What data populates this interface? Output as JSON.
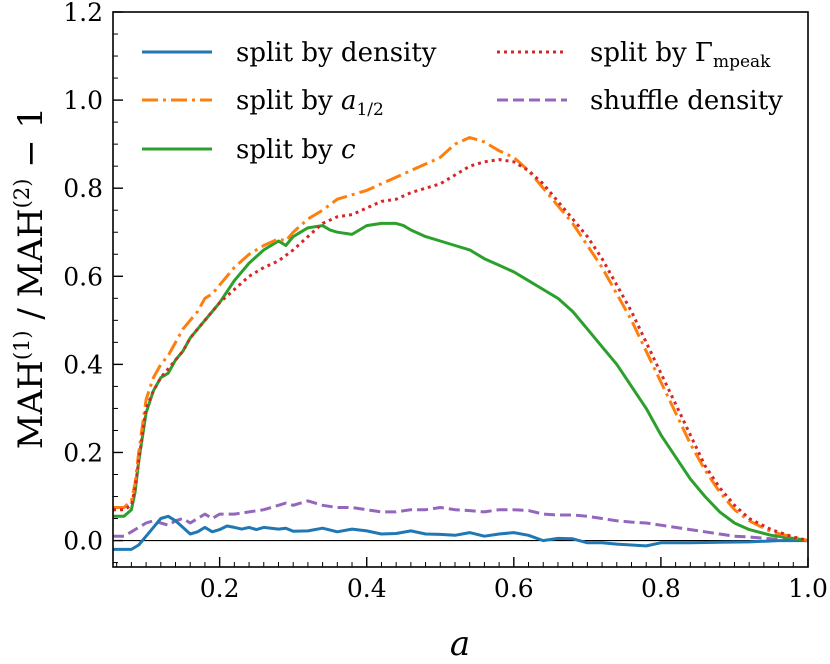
{
  "chart_data": {
    "type": "line",
    "xlabel": "a",
    "ylabel": "MAH(1) / MAH(2) − 1",
    "xlim": [
      0.055,
      1.0
    ],
    "ylim": [
      -0.06,
      1.2
    ],
    "xticks": [
      0.2,
      0.4,
      0.6,
      0.8,
      1.0
    ],
    "xtick_labels": [
      "0.2",
      "0.4",
      "0.6",
      "0.8",
      "1.0"
    ],
    "yticks": [
      0.0,
      0.2,
      0.4,
      0.6,
      0.8,
      1.0,
      1.2
    ],
    "ytick_labels": [
      "0.0",
      "0.2",
      "0.4",
      "0.6",
      "0.8",
      "1.0",
      "1.2"
    ],
    "grid": false,
    "legend_position": "top",
    "reference_line": 0.0,
    "series": [
      {
        "name": "split by density",
        "color": "#1f77b4",
        "style": "solid",
        "x": [
          0.055,
          0.08,
          0.09,
          0.1,
          0.11,
          0.12,
          0.13,
          0.14,
          0.15,
          0.16,
          0.17,
          0.18,
          0.19,
          0.2,
          0.21,
          0.22,
          0.23,
          0.24,
          0.25,
          0.26,
          0.27,
          0.28,
          0.29,
          0.3,
          0.32,
          0.34,
          0.36,
          0.38,
          0.4,
          0.42,
          0.44,
          0.46,
          0.48,
          0.5,
          0.52,
          0.54,
          0.56,
          0.58,
          0.6,
          0.62,
          0.64,
          0.66,
          0.68,
          0.7,
          0.72,
          0.74,
          0.76,
          0.78,
          0.8,
          0.84,
          0.88,
          0.92,
          0.96,
          1.0
        ],
        "y": [
          -0.02,
          -0.02,
          -0.01,
          0.01,
          0.03,
          0.05,
          0.055,
          0.045,
          0.03,
          0.015,
          0.02,
          0.03,
          0.02,
          0.025,
          0.033,
          0.03,
          0.026,
          0.03,
          0.025,
          0.03,
          0.028,
          0.026,
          0.028,
          0.021,
          0.022,
          0.028,
          0.02,
          0.026,
          0.022,
          0.015,
          0.016,
          0.022,
          0.015,
          0.014,
          0.012,
          0.018,
          0.01,
          0.015,
          0.018,
          0.012,
          0.0,
          0.005,
          0.004,
          -0.005,
          -0.005,
          -0.008,
          -0.01,
          -0.012,
          -0.005,
          -0.005,
          -0.004,
          -0.003,
          0.0,
          0.0
        ]
      },
      {
        "name": "split by a1/2",
        "color": "#ff7f0e",
        "style": "dashdot",
        "x": [
          0.055,
          0.07,
          0.08,
          0.085,
          0.09,
          0.1,
          0.11,
          0.12,
          0.13,
          0.14,
          0.15,
          0.16,
          0.17,
          0.18,
          0.19,
          0.2,
          0.22,
          0.24,
          0.26,
          0.28,
          0.29,
          0.3,
          0.32,
          0.34,
          0.36,
          0.38,
          0.4,
          0.42,
          0.44,
          0.46,
          0.48,
          0.5,
          0.52,
          0.54,
          0.56,
          0.58,
          0.6,
          0.62,
          0.64,
          0.66,
          0.68,
          0.7,
          0.72,
          0.74,
          0.76,
          0.78,
          0.8,
          0.82,
          0.84,
          0.86,
          0.88,
          0.9,
          0.92,
          0.95,
          0.98,
          1.0
        ],
        "y": [
          0.075,
          0.075,
          0.09,
          0.13,
          0.2,
          0.32,
          0.37,
          0.4,
          0.42,
          0.45,
          0.48,
          0.5,
          0.52,
          0.55,
          0.56,
          0.58,
          0.62,
          0.65,
          0.67,
          0.685,
          0.68,
          0.7,
          0.73,
          0.75,
          0.775,
          0.785,
          0.795,
          0.81,
          0.825,
          0.84,
          0.855,
          0.87,
          0.9,
          0.915,
          0.905,
          0.885,
          0.87,
          0.84,
          0.8,
          0.76,
          0.72,
          0.67,
          0.62,
          0.56,
          0.5,
          0.43,
          0.36,
          0.29,
          0.22,
          0.16,
          0.11,
          0.07,
          0.045,
          0.02,
          0.008,
          0.0
        ]
      },
      {
        "name": "split by c",
        "color": "#2ca02c",
        "style": "solid",
        "x": [
          0.055,
          0.07,
          0.08,
          0.085,
          0.09,
          0.1,
          0.11,
          0.12,
          0.13,
          0.14,
          0.15,
          0.16,
          0.17,
          0.18,
          0.19,
          0.2,
          0.22,
          0.24,
          0.26,
          0.28,
          0.29,
          0.3,
          0.31,
          0.32,
          0.34,
          0.35,
          0.36,
          0.38,
          0.4,
          0.42,
          0.44,
          0.45,
          0.46,
          0.48,
          0.5,
          0.52,
          0.54,
          0.56,
          0.58,
          0.6,
          0.62,
          0.64,
          0.66,
          0.68,
          0.7,
          0.72,
          0.74,
          0.76,
          0.78,
          0.8,
          0.82,
          0.84,
          0.86,
          0.88,
          0.9,
          0.92,
          0.95,
          0.98,
          1.0
        ],
        "y": [
          0.055,
          0.055,
          0.07,
          0.11,
          0.18,
          0.29,
          0.34,
          0.37,
          0.38,
          0.41,
          0.43,
          0.46,
          0.48,
          0.5,
          0.52,
          0.54,
          0.59,
          0.63,
          0.66,
          0.68,
          0.67,
          0.69,
          0.7,
          0.71,
          0.715,
          0.705,
          0.7,
          0.695,
          0.715,
          0.72,
          0.72,
          0.715,
          0.705,
          0.69,
          0.68,
          0.67,
          0.66,
          0.64,
          0.625,
          0.61,
          0.59,
          0.57,
          0.55,
          0.52,
          0.48,
          0.44,
          0.4,
          0.35,
          0.3,
          0.24,
          0.19,
          0.14,
          0.1,
          0.065,
          0.04,
          0.025,
          0.012,
          0.005,
          0.0
        ]
      },
      {
        "name": "split by Γmpeak",
        "color": "#d62728",
        "style": "dotted",
        "x": [
          0.055,
          0.07,
          0.08,
          0.085,
          0.09,
          0.1,
          0.11,
          0.12,
          0.13,
          0.14,
          0.15,
          0.16,
          0.17,
          0.18,
          0.19,
          0.2,
          0.22,
          0.24,
          0.26,
          0.28,
          0.3,
          0.32,
          0.34,
          0.36,
          0.38,
          0.4,
          0.42,
          0.44,
          0.46,
          0.48,
          0.5,
          0.52,
          0.54,
          0.56,
          0.58,
          0.6,
          0.62,
          0.64,
          0.66,
          0.68,
          0.7,
          0.72,
          0.74,
          0.76,
          0.78,
          0.8,
          0.82,
          0.84,
          0.86,
          0.88,
          0.9,
          0.92,
          0.95,
          0.98,
          1.0
        ],
        "y": [
          0.07,
          0.07,
          0.08,
          0.12,
          0.18,
          0.3,
          0.34,
          0.37,
          0.39,
          0.41,
          0.43,
          0.46,
          0.48,
          0.5,
          0.52,
          0.54,
          0.57,
          0.6,
          0.62,
          0.635,
          0.66,
          0.69,
          0.72,
          0.735,
          0.74,
          0.755,
          0.77,
          0.775,
          0.79,
          0.8,
          0.81,
          0.83,
          0.85,
          0.86,
          0.865,
          0.86,
          0.84,
          0.81,
          0.77,
          0.73,
          0.69,
          0.64,
          0.58,
          0.52,
          0.45,
          0.38,
          0.31,
          0.24,
          0.17,
          0.12,
          0.08,
          0.05,
          0.025,
          0.008,
          0.0
        ]
      },
      {
        "name": "shuffle density",
        "color": "#9467bd",
        "style": "dashed",
        "x": [
          0.055,
          0.07,
          0.08,
          0.09,
          0.1,
          0.11,
          0.12,
          0.13,
          0.14,
          0.15,
          0.16,
          0.17,
          0.18,
          0.19,
          0.2,
          0.22,
          0.24,
          0.26,
          0.28,
          0.29,
          0.3,
          0.31,
          0.32,
          0.33,
          0.34,
          0.36,
          0.38,
          0.4,
          0.42,
          0.44,
          0.46,
          0.48,
          0.5,
          0.52,
          0.54,
          0.56,
          0.58,
          0.6,
          0.62,
          0.64,
          0.66,
          0.68,
          0.7,
          0.72,
          0.74,
          0.76,
          0.78,
          0.8,
          0.82,
          0.84,
          0.86,
          0.88,
          0.9,
          0.92,
          0.95,
          0.98,
          1.0
        ],
        "y": [
          0.01,
          0.01,
          0.02,
          0.03,
          0.04,
          0.045,
          0.04,
          0.035,
          0.045,
          0.05,
          0.04,
          0.05,
          0.06,
          0.05,
          0.06,
          0.06,
          0.065,
          0.07,
          0.08,
          0.085,
          0.08,
          0.085,
          0.09,
          0.085,
          0.08,
          0.075,
          0.075,
          0.07,
          0.065,
          0.065,
          0.07,
          0.07,
          0.075,
          0.07,
          0.068,
          0.065,
          0.07,
          0.07,
          0.068,
          0.06,
          0.058,
          0.058,
          0.055,
          0.05,
          0.045,
          0.042,
          0.04,
          0.035,
          0.03,
          0.025,
          0.02,
          0.015,
          0.01,
          0.008,
          0.004,
          0.001,
          0.0
        ]
      }
    ]
  },
  "legend": {
    "split_by_density": "split by density",
    "split_by_a_prefix": "split by ",
    "split_by_a_var": "a",
    "split_by_a_sub": "1/2",
    "split_by_c_prefix": "split by ",
    "split_by_c_var": "c",
    "split_by_gamma_prefix": "split by Γ",
    "split_by_gamma_sub": "mpeak",
    "shuffle_density": "shuffle density"
  },
  "axis_titles": {
    "x": "a",
    "y_mah1": "MAH",
    "y_sup1": "(1)",
    "y_slash": " / ",
    "y_mah2": "MAH",
    "y_sup2": "(2)",
    "y_minus_one": " − 1"
  }
}
